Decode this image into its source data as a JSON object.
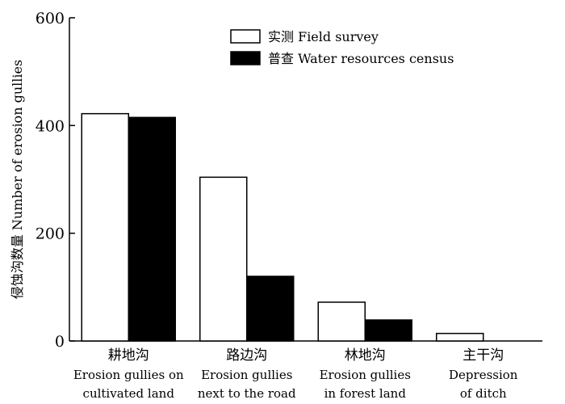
{
  "chart_data": {
    "type": "bar",
    "ylabel": "侵蚀沟数量 Number of erosion gullies",
    "ylim": [
      0,
      600
    ],
    "yticks": [
      0,
      200,
      400,
      600
    ],
    "grid": false,
    "legend_position": "top-right",
    "categories": [
      {
        "zh": "耕地沟",
        "en_line1": "Erosion gullies on",
        "en_line2": "cultivated land"
      },
      {
        "zh": "路边沟",
        "en_line1": "Erosion gullies",
        "en_line2": "next to the road"
      },
      {
        "zh": "林地沟",
        "en_line1": "Erosion gullies",
        "en_line2": "in forest land"
      },
      {
        "zh": "主干沟",
        "en_line1": "Depression",
        "en_line2": "of ditch"
      }
    ],
    "series": [
      {
        "name": "实测 Field survey",
        "color": "#ffffff",
        "values": [
          422,
          304,
          72,
          14
        ]
      },
      {
        "name": "普查 Water resources census",
        "color": "#000000",
        "values": [
          415,
          120,
          39,
          0
        ]
      }
    ]
  }
}
